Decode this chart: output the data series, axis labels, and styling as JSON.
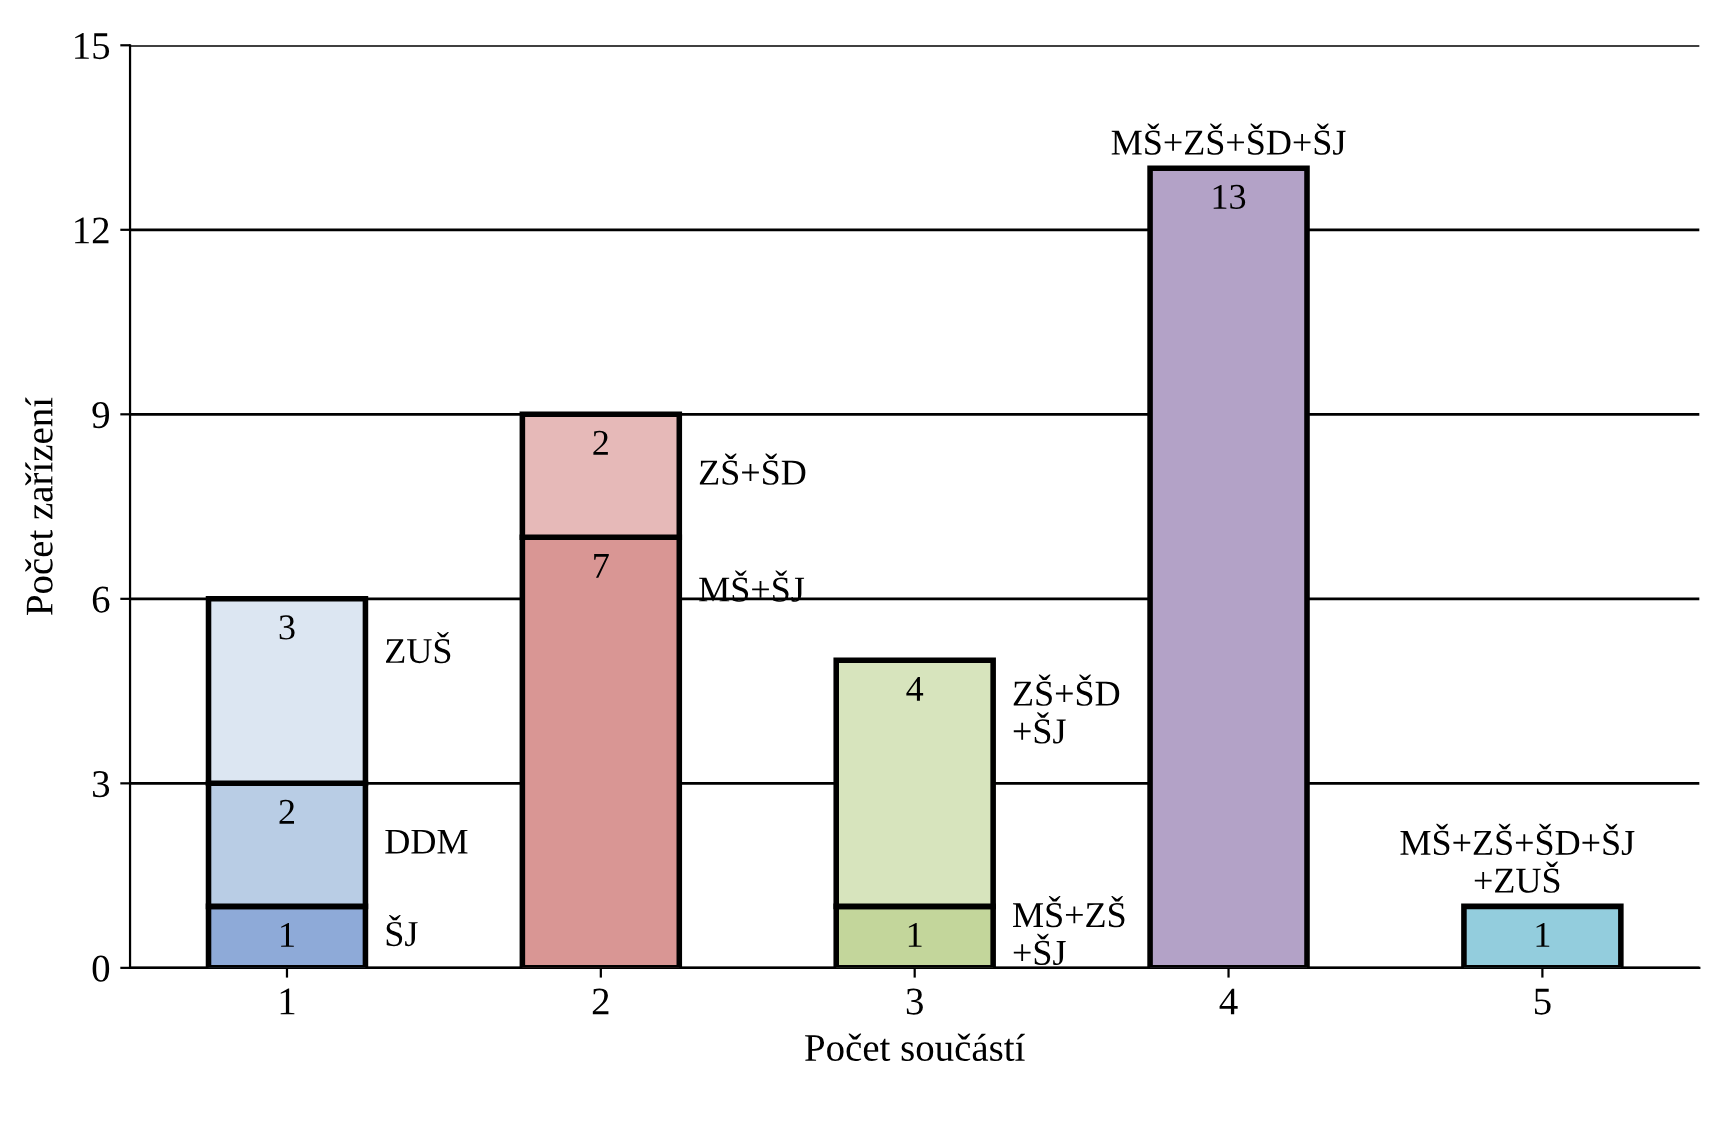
{
  "chart_data": {
    "type": "bar",
    "stacked": true,
    "xlabel": "Počet součástí",
    "ylabel": "Počet zařízení",
    "categories": [
      "1",
      "2",
      "3",
      "4",
      "5"
    ],
    "series": [
      {
        "name": "ŠJ",
        "color": "#8eaad8",
        "values": [
          1,
          null,
          null,
          null,
          null
        ]
      },
      {
        "name": "DDM",
        "color": "#b9cde5",
        "values": [
          2,
          null,
          null,
          null,
          null
        ]
      },
      {
        "name": "ZUŠ",
        "color": "#dce6f2",
        "values": [
          3,
          null,
          null,
          null,
          null
        ]
      },
      {
        "name": "MŠ+ŠJ",
        "color": "#d99694",
        "values": [
          null,
          7,
          null,
          null,
          null
        ]
      },
      {
        "name": "ZŠ+ŠD",
        "color": "#e6b9b8",
        "values": [
          null,
          2,
          null,
          null,
          null
        ]
      },
      {
        "name": "MŠ+ZŠ\n+ŠJ",
        "color": "#c3d69b",
        "values": [
          null,
          null,
          1,
          null,
          null
        ]
      },
      {
        "name": "ZŠ+ŠD\n+ŠJ",
        "color": "#d7e4bd",
        "values": [
          null,
          null,
          4,
          null,
          null
        ]
      },
      {
        "name": "MŠ+ZŠ+ŠD+ŠJ",
        "color": "#b3a2c7",
        "values": [
          null,
          null,
          null,
          13,
          null
        ]
      },
      {
        "name": "MŠ+ZŠ+ŠD+ŠJ\n+ZUŠ",
        "color": "#93cddd",
        "values": [
          null,
          null,
          null,
          null,
          1
        ]
      }
    ],
    "ylim": [
      0,
      15
    ],
    "yticks": [
      0,
      3,
      6,
      9,
      12,
      15
    ],
    "grid": "y",
    "data_labels": true
  }
}
